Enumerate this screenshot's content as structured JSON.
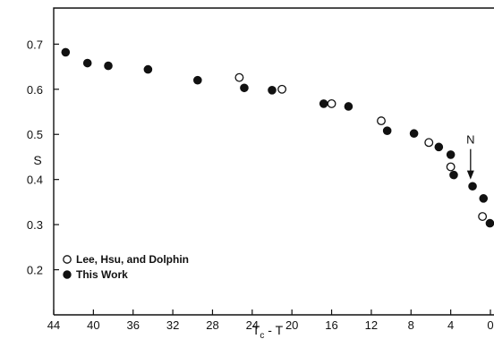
{
  "chart_data": {
    "type": "scatter",
    "title": "",
    "xlabel": "T_c - T",
    "ylabel": "S",
    "xlim": [
      44,
      0
    ],
    "ylim": [
      0.1,
      0.78
    ],
    "x_reversed": true,
    "x_ticks": [
      44,
      40,
      36,
      32,
      28,
      24,
      20,
      16,
      12,
      8,
      4,
      0
    ],
    "x_tick_labels": [
      "44",
      "40",
      "36",
      "32",
      "28",
      "24",
      "20",
      "16",
      "12",
      "8",
      "4",
      "0"
    ],
    "y_ticks": [
      0.2,
      0.3,
      0.4,
      0.5,
      0.6,
      0.7
    ],
    "y_tick_labels": [
      "0.2",
      "0.3",
      "0.4",
      "0.5",
      "0.6",
      "0.7"
    ],
    "grid": false,
    "legend_position": "bottom-left",
    "series": [
      {
        "name": "Lee, Hsu, and Dolphin",
        "marker": "open-circle",
        "color": "#111111",
        "points": [
          {
            "x": 25.3,
            "y": 0.626
          },
          {
            "x": 21.0,
            "y": 0.6
          },
          {
            "x": 16.0,
            "y": 0.568
          },
          {
            "x": 11.0,
            "y": 0.53
          },
          {
            "x": 6.2,
            "y": 0.482
          },
          {
            "x": 4.0,
            "y": 0.428
          },
          {
            "x": 0.8,
            "y": 0.318
          }
        ]
      },
      {
        "name": "This Work",
        "marker": "filled-circle",
        "color": "#111111",
        "points": [
          {
            "x": 42.8,
            "y": 0.682
          },
          {
            "x": 40.6,
            "y": 0.658
          },
          {
            "x": 38.5,
            "y": 0.652
          },
          {
            "x": 34.5,
            "y": 0.644
          },
          {
            "x": 29.5,
            "y": 0.62
          },
          {
            "x": 24.8,
            "y": 0.603
          },
          {
            "x": 22.0,
            "y": 0.598
          },
          {
            "x": 16.8,
            "y": 0.568
          },
          {
            "x": 14.3,
            "y": 0.562
          },
          {
            "x": 10.4,
            "y": 0.508
          },
          {
            "x": 7.7,
            "y": 0.502
          },
          {
            "x": 5.2,
            "y": 0.472
          },
          {
            "x": 4.0,
            "y": 0.455
          },
          {
            "x": 3.7,
            "y": 0.41
          },
          {
            "x": 1.8,
            "y": 0.385
          },
          {
            "x": 0.7,
            "y": 0.358
          },
          {
            "x": 0.05,
            "y": 0.303
          }
        ]
      }
    ],
    "annotations": [
      {
        "text": "N",
        "arrow": "down",
        "x": 2.0,
        "y": 0.4
      }
    ]
  }
}
